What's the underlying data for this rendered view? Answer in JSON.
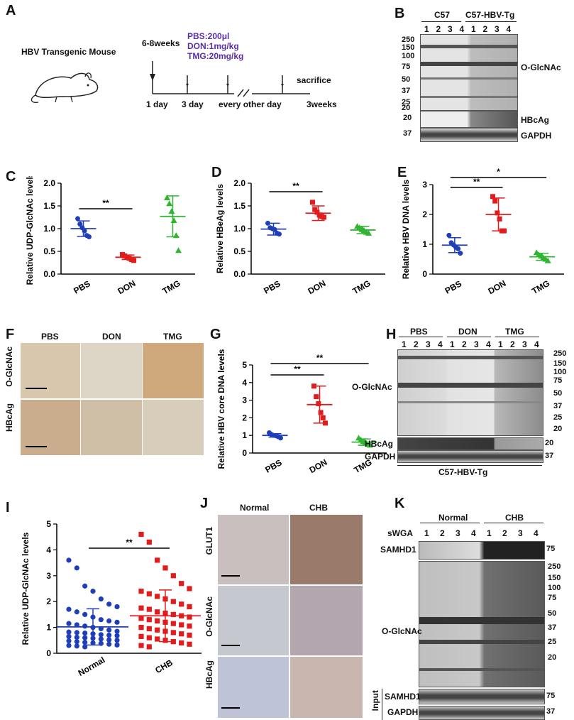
{
  "panels": [
    "A",
    "B",
    "C",
    "D",
    "E",
    "F",
    "G",
    "H",
    "I",
    "J",
    "K"
  ],
  "panelA": {
    "title": "HBV Transgenic Mouse",
    "age": "6-8weeks",
    "doses": [
      "PBS:200μl",
      "DON:1mg/kg",
      "TMG:20mg/kg"
    ],
    "timepoints": [
      "1 day",
      "3 day",
      "every other day",
      "3weeks"
    ],
    "end": "sacrifice"
  },
  "panelB": {
    "groups": [
      "C57",
      "C57-HBV-Tg"
    ],
    "lanes": [
      "1",
      "2",
      "3",
      "4",
      "1",
      "2",
      "3",
      "4"
    ],
    "markers": [
      "250",
      "150",
      "100",
      "75",
      "50",
      "37",
      "25",
      "20"
    ],
    "small_markers": [
      "20",
      "37"
    ],
    "bands": [
      "O-GlcNAc",
      "HBcAg",
      "GAPDH"
    ]
  },
  "panelF": {
    "cols": [
      "PBS",
      "DON",
      "TMG"
    ],
    "rows": [
      "O-GlcNAc",
      "HBcAg"
    ]
  },
  "panelH": {
    "groups": [
      "PBS",
      "DON",
      "TMG"
    ],
    "lanes": [
      "1",
      "2",
      "3",
      "4",
      "1",
      "2",
      "3",
      "4",
      "1",
      "2",
      "3",
      "4"
    ],
    "markers": [
      "250",
      "150",
      "100",
      "75",
      "50",
      "37",
      "25",
      "20"
    ],
    "small_markers": [
      "20",
      "37"
    ],
    "bands": [
      "O-GlcNAc",
      "HBcAg",
      "GAPDH"
    ],
    "footer": "C57-HBV-Tg"
  },
  "panelJ": {
    "cols": [
      "Normal",
      "CHB"
    ],
    "rows": [
      "GLUT1",
      "O-GlcNAc",
      "HBcAg"
    ]
  },
  "panelK": {
    "groups": [
      "Normal",
      "CHB"
    ],
    "swga": "sWGA",
    "lanes": [
      "1",
      "2",
      "3",
      "4",
      "1",
      "2",
      "3",
      "4"
    ],
    "bands": [
      "SAMHD1",
      "O-GlcNAc",
      "SAMHD1",
      "GAPDH"
    ],
    "input": "Input",
    "markers_top": [
      "75"
    ],
    "markers_mid": [
      "250",
      "150",
      "100",
      "75",
      "50",
      "37",
      "25",
      "20"
    ],
    "markers_bot": [
      "75",
      "37"
    ]
  },
  "chart_data": [
    {
      "id": "C",
      "type": "scatter",
      "ylabel": "Relative UDP-GlcNAc levels",
      "categories": [
        "PBS",
        "DON",
        "TMG"
      ],
      "yticks": [
        0.0,
        0.5,
        1.0,
        1.5,
        2.0
      ],
      "ylim": [
        0,
        2.0
      ],
      "colors": [
        "#1f3fb8",
        "#e21c1c",
        "#2fb52f"
      ],
      "markers": [
        "circle",
        "square",
        "triangle"
      ],
      "series": [
        {
          "name": "PBS",
          "values": [
            1.22,
            1.1,
            1.02,
            0.95,
            0.85,
            0.82
          ],
          "mean": 1.0,
          "sd": 0.17
        },
        {
          "name": "DON",
          "values": [
            0.43,
            0.4,
            0.37,
            0.35,
            0.32,
            0.3
          ],
          "mean": 0.37,
          "sd": 0.05
        },
        {
          "name": "TMG",
          "values": [
            1.68,
            1.55,
            1.38,
            1.18,
            0.85,
            0.52
          ],
          "mean": 1.27,
          "sd": 0.45
        }
      ],
      "significance": [
        {
          "from": 0,
          "to": 1,
          "label": "**"
        }
      ]
    },
    {
      "id": "D",
      "type": "scatter",
      "ylabel": "Relative HBeAg levels",
      "categories": [
        "PBS",
        "DON",
        "TMG"
      ],
      "yticks": [
        0.0,
        0.5,
        1.0,
        1.5,
        2.0
      ],
      "ylim": [
        0,
        2.0
      ],
      "colors": [
        "#1f3fb8",
        "#e21c1c",
        "#2fb52f"
      ],
      "markers": [
        "circle",
        "square",
        "triangle"
      ],
      "series": [
        {
          "name": "PBS",
          "values": [
            1.12,
            1.02,
            1.0,
            0.98,
            0.9,
            0.88
          ],
          "mean": 0.99,
          "sd": 0.13
        },
        {
          "name": "DON",
          "values": [
            1.58,
            1.42,
            1.36,
            1.3,
            1.27,
            1.25
          ],
          "mean": 1.34,
          "sd": 0.16
        },
        {
          "name": "TMG",
          "values": [
            1.05,
            1.02,
            0.98,
            0.96,
            0.92,
            0.9
          ],
          "mean": 0.97,
          "sd": 0.08
        }
      ],
      "significance": [
        {
          "from": 0,
          "to": 1,
          "label": "**"
        }
      ]
    },
    {
      "id": "E",
      "type": "scatter",
      "ylabel": "Relative HBV DNA levels",
      "categories": [
        "PBS",
        "DON",
        "TMG"
      ],
      "yticks": [
        0,
        1,
        2,
        3
      ],
      "ylim": [
        0,
        3
      ],
      "colors": [
        "#1f3fb8",
        "#e21c1c",
        "#2fb52f"
      ],
      "markers": [
        "circle",
        "square",
        "triangle"
      ],
      "series": [
        {
          "name": "PBS",
          "values": [
            1.3,
            1.05,
            0.98,
            0.9,
            0.85,
            0.7
          ],
          "mean": 0.97,
          "sd": 0.25
        },
        {
          "name": "DON",
          "values": [
            2.6,
            2.45,
            2.05,
            1.85,
            1.45,
            1.45
          ],
          "mean": 2.0,
          "sd": 0.55
        },
        {
          "name": "TMG",
          "values": [
            0.72,
            0.65,
            0.6,
            0.55,
            0.5,
            0.45
          ],
          "mean": 0.58,
          "sd": 0.12
        }
      ],
      "significance": [
        {
          "from": 0,
          "to": 1,
          "label": "**"
        },
        {
          "from": 0,
          "to": 2,
          "label": "*"
        }
      ]
    },
    {
      "id": "G",
      "type": "scatter",
      "ylabel": "Relative HBV core DNA levels",
      "categories": [
        "PBS",
        "DON",
        "TMG"
      ],
      "yticks": [
        0,
        1,
        2,
        3,
        4,
        5
      ],
      "ylim": [
        0,
        5
      ],
      "colors": [
        "#1f3fb8",
        "#e21c1c",
        "#2fb52f"
      ],
      "markers": [
        "circle",
        "square",
        "triangle"
      ],
      "series": [
        {
          "name": "PBS",
          "values": [
            1.15,
            1.05,
            1.0,
            0.98,
            0.92,
            0.85
          ],
          "mean": 1.0,
          "sd": 0.1
        },
        {
          "name": "DON",
          "values": [
            3.8,
            3.2,
            2.8,
            2.3,
            2.0,
            1.7
          ],
          "mean": 2.75,
          "sd": 1.05
        },
        {
          "name": "TMG",
          "values": [
            0.85,
            0.75,
            0.65,
            0.6,
            0.5,
            0.45
          ],
          "mean": 0.62,
          "sd": 0.18
        }
      ],
      "significance": [
        {
          "from": 0,
          "to": 1,
          "label": "**"
        },
        {
          "from": 0,
          "to": 2,
          "label": "**"
        }
      ]
    },
    {
      "id": "I",
      "type": "scatter",
      "ylabel": "Relative  UDP-GlcNAc levels",
      "categories": [
        "Normal",
        "CHB"
      ],
      "yticks": [
        0,
        1,
        2,
        3,
        4,
        5
      ],
      "ylim": [
        0,
        5
      ],
      "colors": [
        "#1f3fb8",
        "#e21c1c"
      ],
      "markers": [
        "circle",
        "square"
      ],
      "series": [
        {
          "name": "Normal",
          "values": [
            3.6,
            3.3,
            2.6,
            2.4,
            2.1,
            1.9,
            1.8,
            1.7,
            1.6,
            1.5,
            1.4,
            1.3,
            1.25,
            1.2,
            1.15,
            1.1,
            1.05,
            1.0,
            0.95,
            0.9,
            0.85,
            0.82,
            0.8,
            0.78,
            0.75,
            0.72,
            0.7,
            0.68,
            0.65,
            0.62,
            0.6,
            0.58,
            0.55,
            0.52,
            0.5,
            0.48,
            0.45,
            0.42,
            0.4,
            0.38,
            0.35,
            0.32,
            0.3,
            0.28,
            0.25
          ],
          "mean": 1.02,
          "sd": 0.7
        },
        {
          "name": "CHB",
          "values": [
            4.6,
            4.3,
            3.6,
            3.3,
            3.0,
            2.7,
            2.5,
            2.4,
            2.3,
            2.2,
            2.1,
            2.0,
            1.9,
            1.8,
            1.75,
            1.7,
            1.6,
            1.55,
            1.5,
            1.45,
            1.4,
            1.35,
            1.3,
            1.25,
            1.2,
            1.15,
            1.1,
            1.05,
            1.0,
            0.95,
            0.9,
            0.85,
            0.8,
            0.75,
            0.7,
            0.65,
            0.6,
            0.55,
            0.5,
            0.45,
            0.4,
            0.35,
            0.3,
            0.25
          ],
          "mean": 1.45,
          "sd": 1.0
        }
      ],
      "significance": [
        {
          "from": 0,
          "to": 1,
          "label": "**"
        }
      ]
    }
  ]
}
